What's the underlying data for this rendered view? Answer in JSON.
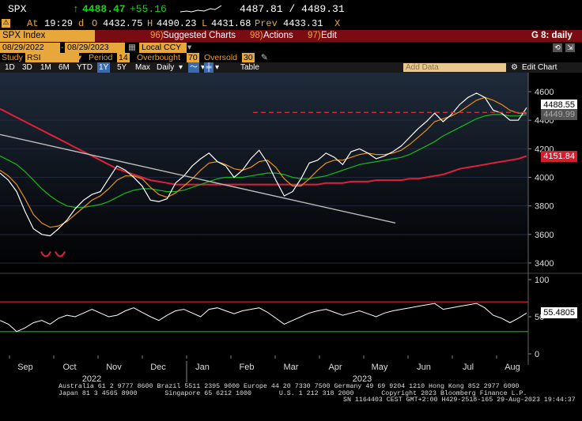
{
  "ticker": {
    "symbol": "SPX",
    "last": "4488.47",
    "change": "+55.16",
    "bid_ask": "4487.81 / 4489.31"
  },
  "quote": {
    "at_label": "At",
    "time": "19:29",
    "d_label": "d",
    "open_label": "O",
    "open": "4432.75",
    "high_label": "H",
    "high": "4490.23",
    "low_label": "L",
    "low": "4431.68",
    "prev_label": "Prev",
    "prev": "4433.31",
    "close_x": "X"
  },
  "titlebar": {
    "index": "SPX Index",
    "suggested_num": "96)",
    "suggested": "Suggested Charts",
    "actions_num": "98)",
    "actions": "Actions",
    "edit_num": "97)",
    "edit": "Edit",
    "page": "G 8: daily"
  },
  "dates": {
    "start": "08/29/2022",
    "end": "08/29/2023",
    "ccy": "Local CCY"
  },
  "study": {
    "label": "Study",
    "value": "RSI",
    "period_label": "Period",
    "period": "14",
    "overbought_label": "Overbought",
    "overbought": "70",
    "oversold_label": "Oversold",
    "oversold": "30"
  },
  "toolbar": {
    "ranges": [
      "1D",
      "3D",
      "1M",
      "6M",
      "YTD",
      "1Y",
      "5Y",
      "Max"
    ],
    "selected": "1Y",
    "freq": "Daily",
    "table": "Table",
    "add_data": "Add Data",
    "edit_chart": "Edit Chart"
  },
  "colors": {
    "price": "#ffffff",
    "ma_fast": "#e8901c",
    "ma_mid": "#18b81c",
    "ma_slow": "#e0203a",
    "trend": "#bbbbbb",
    "accent": "#7b0b12",
    "rsi": "#ffffff",
    "overbought_line": "#e0203a",
    "oversold_line": "#18b81c"
  },
  "chart_data": {
    "type": "line",
    "y_ticks": [
      "4600",
      "4400",
      "4200",
      "4000",
      "3800",
      "3600",
      "3400"
    ],
    "ylim": [
      3350,
      4700
    ],
    "x_labels": [
      "Sep",
      "Oct",
      "Nov",
      "Dec",
      "Jan",
      "Feb",
      "Mar",
      "Apr",
      "May",
      "Jun",
      "Jul",
      "Aug"
    ],
    "year_labels": [
      "2022",
      "2023"
    ],
    "price_label": "4488.55",
    "ma_label": "4449.99",
    "ma_slow_label": "4151.84",
    "series": [
      {
        "values": [
          4030,
          3980,
          3900,
          3760,
          3640,
          3600,
          3590,
          3640,
          3700,
          3780,
          3840,
          3880,
          3900,
          3990,
          4080,
          4050,
          4000,
          3940,
          3840,
          3830,
          3850,
          3960,
          4010,
          4080,
          4130,
          4170,
          4110,
          4080,
          4000,
          4050,
          4130,
          4190,
          4100,
          3980,
          3870,
          3900,
          3990,
          4100,
          4120,
          4170,
          4140,
          4090,
          4180,
          4200,
          4170,
          4130,
          4150,
          4180,
          4220,
          4280,
          4340,
          4390,
          4450,
          4390,
          4440,
          4510,
          4560,
          4590,
          4560,
          4470,
          4450,
          4400,
          4400,
          4488
        ]
      },
      {
        "values": [
          4050,
          4010,
          3950,
          3850,
          3740,
          3680,
          3650,
          3660,
          3690,
          3740,
          3790,
          3840,
          3870,
          3920,
          3980,
          4010,
          4010,
          3990,
          3930,
          3880,
          3860,
          3890,
          3940,
          3990,
          4050,
          4100,
          4110,
          4090,
          4060,
          4050,
          4070,
          4110,
          4120,
          4070,
          3990,
          3940,
          3940,
          3990,
          4050,
          4100,
          4120,
          4120,
          4140,
          4160,
          4170,
          4160,
          4160,
          4170,
          4190,
          4230,
          4280,
          4330,
          4390,
          4410,
          4430,
          4460,
          4500,
          4540,
          4560,
          4540,
          4510,
          4470,
          4450,
          4450
        ]
      },
      {
        "values": [
          4150,
          4120,
          4090,
          4040,
          3980,
          3920,
          3870,
          3830,
          3800,
          3790,
          3790,
          3800,
          3810,
          3830,
          3860,
          3890,
          3910,
          3920,
          3920,
          3910,
          3900,
          3900,
          3910,
          3930,
          3950,
          3970,
          3990,
          4000,
          4000,
          4000,
          4010,
          4020,
          4030,
          4030,
          4020,
          4000,
          3990,
          3990,
          4000,
          4010,
          4030,
          4050,
          4070,
          4090,
          4100,
          4110,
          4120,
          4130,
          4140,
          4160,
          4190,
          4220,
          4250,
          4290,
          4320,
          4350,
          4380,
          4410,
          4430,
          4440,
          4440,
          4430,
          4430,
          4440
        ]
      },
      {
        "values": [
          4480,
          4450,
          4420,
          4390,
          4360,
          4330,
          4300,
          4270,
          4240,
          4210,
          4180,
          4150,
          4120,
          4090,
          4060,
          4040,
          4020,
          4000,
          3980,
          3970,
          3960,
          3950,
          3950,
          3950,
          3950,
          3950,
          3950,
          3950,
          3950,
          3950,
          3950,
          3950,
          3950,
          3950,
          3950,
          3950,
          3950,
          3950,
          3950,
          3960,
          3960,
          3960,
          3970,
          3970,
          3970,
          3980,
          3980,
          3980,
          3980,
          3990,
          3990,
          4000,
          4010,
          4020,
          4040,
          4060,
          4070,
          4080,
          4090,
          4100,
          4110,
          4120,
          4130,
          4150
        ]
      }
    ],
    "rsi": {
      "values": [
        45,
        40,
        30,
        35,
        42,
        45,
        40,
        48,
        52,
        50,
        55,
        60,
        55,
        50,
        52,
        58,
        62,
        56,
        50,
        45,
        52,
        58,
        60,
        55,
        50,
        60,
        62,
        58,
        54,
        58,
        60,
        62,
        56,
        48,
        40,
        45,
        50,
        55,
        58,
        60,
        56,
        52,
        55,
        58,
        54,
        50,
        55,
        58,
        60,
        62,
        64,
        66,
        68,
        60,
        62,
        64,
        66,
        68,
        62,
        52,
        48,
        42,
        48,
        55
      ],
      "yticks": [
        "100",
        "50",
        "0"
      ],
      "label": "55.4805",
      "overbought": 70,
      "oversold": 30
    }
  },
  "footer": {
    "line1": "Australia 61 2 9777 8600 Brazil 5511 2395 9000 Europe 44 20 7330 7500 Germany 49 69 9204 1210 Hong Kong 852 2977 6000",
    "line2": "Japan 81 3 4565 8900       Singapore 65 6212 1000       U.S. 1 212 318 2000       Copyright 2023 Bloomberg Finance L.P.",
    "line3": "SN 1164403 CEST GMT+2:00 H429-2518-165 29-Aug-2023 19:44:37"
  }
}
